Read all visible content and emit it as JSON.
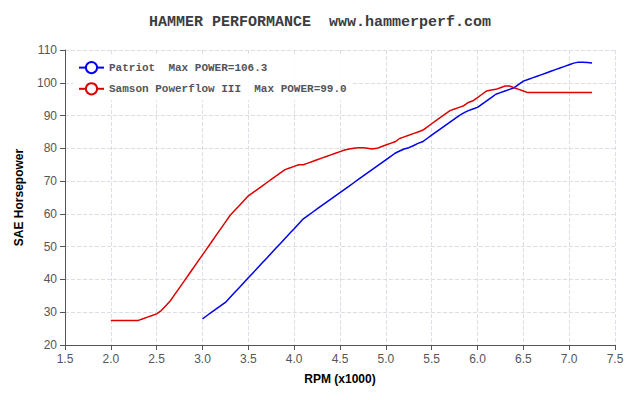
{
  "chart_data": {
    "type": "line",
    "title": "HAMMER PERFORMANCE  www.hammerperf.com",
    "xlabel": "RPM (x1000)",
    "ylabel": "SAE Horsepower",
    "xlim": [
      1.5,
      7.5
    ],
    "ylim": [
      20,
      110
    ],
    "xticks": [
      1.5,
      {
        "value": 2,
        "label": "2.0"
      },
      2.5,
      {
        "value": 3,
        "label": "3.0"
      },
      3.5,
      {
        "value": 4,
        "label": "4.0"
      },
      4.5,
      {
        "value": 5,
        "label": "5.0"
      },
      5.5,
      {
        "value": 6,
        "label": "6.0"
      },
      6.5,
      {
        "value": 7,
        "label": "7.0"
      },
      7.5
    ],
    "yticks": [
      20,
      30,
      40,
      50,
      60,
      70,
      80,
      90,
      100,
      110
    ],
    "grid": true,
    "legend": "upper left",
    "series": [
      {
        "name": "Patriot  Max POWER=106.3",
        "color": "#0000ee",
        "x": [
          3.0,
          3.05,
          3.1,
          3.15,
          3.2,
          3.25,
          3.3,
          3.35,
          3.4,
          3.45,
          3.5,
          3.55,
          3.6,
          3.65,
          3.7,
          3.75,
          3.8,
          3.85,
          3.9,
          3.95,
          4.0,
          4.05,
          4.1,
          4.15,
          4.2,
          4.25,
          4.3,
          4.35,
          4.4,
          4.45,
          4.5,
          4.55,
          4.6,
          4.65,
          4.7,
          4.75,
          4.8,
          4.85,
          4.9,
          4.95,
          5.0,
          5.05,
          5.1,
          5.15,
          5.2,
          5.25,
          5.3,
          5.35,
          5.4,
          5.45,
          5.5,
          5.55,
          5.6,
          5.65,
          5.7,
          5.75,
          5.8,
          5.85,
          5.9,
          5.95,
          6.0,
          6.05,
          6.1,
          6.15,
          6.2,
          6.25,
          6.3,
          6.35,
          6.4,
          6.45,
          6.5,
          6.55,
          6.6,
          6.65,
          6.7,
          6.75,
          6.8,
          6.85,
          6.9,
          6.95,
          7.0,
          7.05,
          7.1,
          7.15,
          7.2,
          7.25
        ],
        "values": [
          28.0,
          29.0,
          30.0,
          31.0,
          32.0,
          33.0,
          34.5,
          36.0,
          37.5,
          39.0,
          40.5,
          42.0,
          43.5,
          45.0,
          46.5,
          48.0,
          49.5,
          51.0,
          52.5,
          54.0,
          55.5,
          57.0,
          58.5,
          59.5,
          60.5,
          61.5,
          62.5,
          63.5,
          64.5,
          65.5,
          66.5,
          67.5,
          68.5,
          69.5,
          70.5,
          71.5,
          72.5,
          73.5,
          74.5,
          75.5,
          76.5,
          77.5,
          78.5,
          79.2,
          79.8,
          80.2,
          80.8,
          81.5,
          82.0,
          83.0,
          84.0,
          85.0,
          86.0,
          87.0,
          88.0,
          89.0,
          90.0,
          90.8,
          91.5,
          92.0,
          92.5,
          93.5,
          94.5,
          95.5,
          96.5,
          97.0,
          97.5,
          98.0,
          98.5,
          99.5,
          100.5,
          101.0,
          101.5,
          102.0,
          102.5,
          103.0,
          103.5,
          104.0,
          104.5,
          105.0,
          105.5,
          106.0,
          106.3,
          106.3,
          106.2,
          106.0
        ]
      },
      {
        "name": "Samson Powerflow III  Max POWER=99.0",
        "color": "#dd0000",
        "x": [
          2.0,
          2.05,
          2.1,
          2.15,
          2.2,
          2.25,
          2.3,
          2.35,
          2.4,
          2.45,
          2.5,
          2.55,
          2.6,
          2.65,
          2.7,
          2.75,
          2.8,
          2.85,
          2.9,
          2.95,
          3.0,
          3.05,
          3.1,
          3.15,
          3.2,
          3.25,
          3.3,
          3.35,
          3.4,
          3.45,
          3.5,
          3.55,
          3.6,
          3.65,
          3.7,
          3.75,
          3.8,
          3.85,
          3.9,
          3.95,
          4.0,
          4.05,
          4.1,
          4.15,
          4.2,
          4.25,
          4.3,
          4.35,
          4.4,
          4.45,
          4.5,
          4.55,
          4.6,
          4.65,
          4.7,
          4.75,
          4.8,
          4.85,
          4.9,
          4.95,
          5.0,
          5.05,
          5.1,
          5.15,
          5.2,
          5.25,
          5.3,
          5.35,
          5.4,
          5.45,
          5.5,
          5.55,
          5.6,
          5.65,
          5.7,
          5.75,
          5.8,
          5.85,
          5.9,
          5.95,
          6.0,
          6.05,
          6.1,
          6.15,
          6.2,
          6.25,
          6.3,
          6.35,
          6.4,
          6.45,
          6.5,
          6.55,
          6.6,
          6.65,
          6.7,
          6.75,
          6.8,
          6.85,
          6.9,
          6.95,
          7.0,
          7.05,
          7.1,
          7.15,
          7.2,
          7.25
        ],
        "values": [
          27.5,
          27.5,
          27.5,
          27.5,
          27.5,
          27.5,
          27.5,
          28.0,
          28.5,
          29.0,
          29.5,
          30.5,
          32.0,
          33.5,
          35.5,
          37.5,
          39.5,
          41.5,
          43.5,
          45.5,
          47.5,
          49.5,
          51.5,
          53.5,
          55.5,
          57.5,
          59.5,
          61.0,
          62.5,
          64.0,
          65.5,
          66.5,
          67.5,
          68.5,
          69.5,
          70.5,
          71.5,
          72.5,
          73.5,
          74.0,
          74.5,
          75.0,
          75.0,
          75.5,
          76.0,
          76.5,
          77.0,
          77.5,
          78.0,
          78.5,
          79.0,
          79.5,
          79.8,
          80.0,
          80.2,
          80.2,
          80.0,
          79.8,
          80.0,
          80.5,
          81.0,
          81.5,
          82.0,
          83.0,
          83.5,
          84.0,
          84.5,
          85.0,
          85.5,
          86.5,
          87.5,
          88.5,
          89.5,
          90.5,
          91.5,
          92.0,
          92.5,
          93.0,
          94.0,
          94.5,
          95.5,
          96.5,
          97.5,
          97.8,
          98.0,
          98.5,
          99.0,
          99.0,
          98.5,
          98.0,
          97.5,
          97.0,
          97.0,
          97.0,
          97.0,
          97.0,
          97.0,
          97.0,
          97.0,
          97.0,
          97.0,
          97.0,
          97.0,
          97.0,
          97.0,
          97.0
        ]
      }
    ]
  }
}
